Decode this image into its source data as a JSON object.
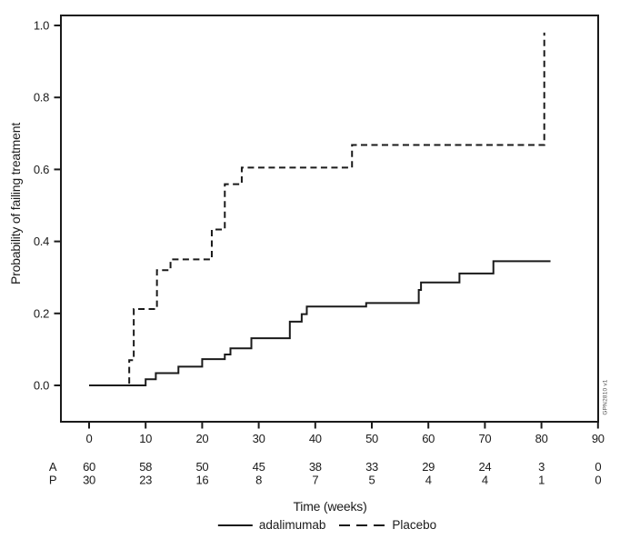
{
  "figure": {
    "background": "#ffffff",
    "line_color": "#1a1a1a",
    "side_note": "GPN2810 v1"
  },
  "chart_data": {
    "type": "line",
    "subtype": "kaplan-meier-step",
    "title": "",
    "xlabel": "Time (weeks)",
    "ylabel": "Probability of failing treatment",
    "x_ticks": [
      0,
      10,
      20,
      30,
      40,
      50,
      60,
      70,
      80,
      90
    ],
    "y_ticks": [
      "0.0",
      "0.2",
      "0.4",
      "0.6",
      "0.8",
      "1.0"
    ],
    "xlim": [
      -5,
      90.5
    ],
    "ylim": [
      -0.1,
      1.03
    ],
    "grid": false,
    "legend_position": "bottom-center",
    "series": [
      {
        "name": "adalimumab",
        "line_style": "solid",
        "steps": [
          [
            0,
            0
          ],
          [
            10,
            0.017
          ],
          [
            11.8,
            0.034
          ],
          [
            15.8,
            0.052
          ],
          [
            20,
            0.073
          ],
          [
            24,
            0.086
          ],
          [
            25,
            0.103
          ],
          [
            28.7,
            0.131
          ],
          [
            35.5,
            0.177
          ],
          [
            37.6,
            0.198
          ],
          [
            38.5,
            0.219
          ],
          [
            49,
            0.229
          ],
          [
            58.3,
            0.265
          ],
          [
            58.7,
            0.286
          ],
          [
            65.5,
            0.311
          ],
          [
            71.5,
            0.345
          ]
        ],
        "end_week": 81.6
      },
      {
        "name": "Placebo",
        "line_style": "dashed",
        "steps": [
          [
            0,
            0
          ],
          [
            7.1,
            0.07
          ],
          [
            7.9,
            0.212
          ],
          [
            12,
            0.32
          ],
          [
            14.4,
            0.35
          ],
          [
            21.7,
            0.433
          ],
          [
            24,
            0.559
          ],
          [
            27,
            0.605
          ],
          [
            46.5,
            0.668
          ],
          [
            80.5,
            0.98
          ]
        ],
        "end_week": 80.5
      }
    ],
    "at_risk": {
      "weeks": [
        0,
        10,
        20,
        30,
        40,
        50,
        60,
        70,
        80,
        90
      ],
      "rows": [
        {
          "label": "A",
          "counts": [
            60,
            58,
            50,
            45,
            38,
            33,
            29,
            24,
            3,
            0
          ]
        },
        {
          "label": "P",
          "counts": [
            30,
            23,
            16,
            8,
            7,
            5,
            4,
            4,
            1,
            0
          ]
        }
      ]
    }
  }
}
